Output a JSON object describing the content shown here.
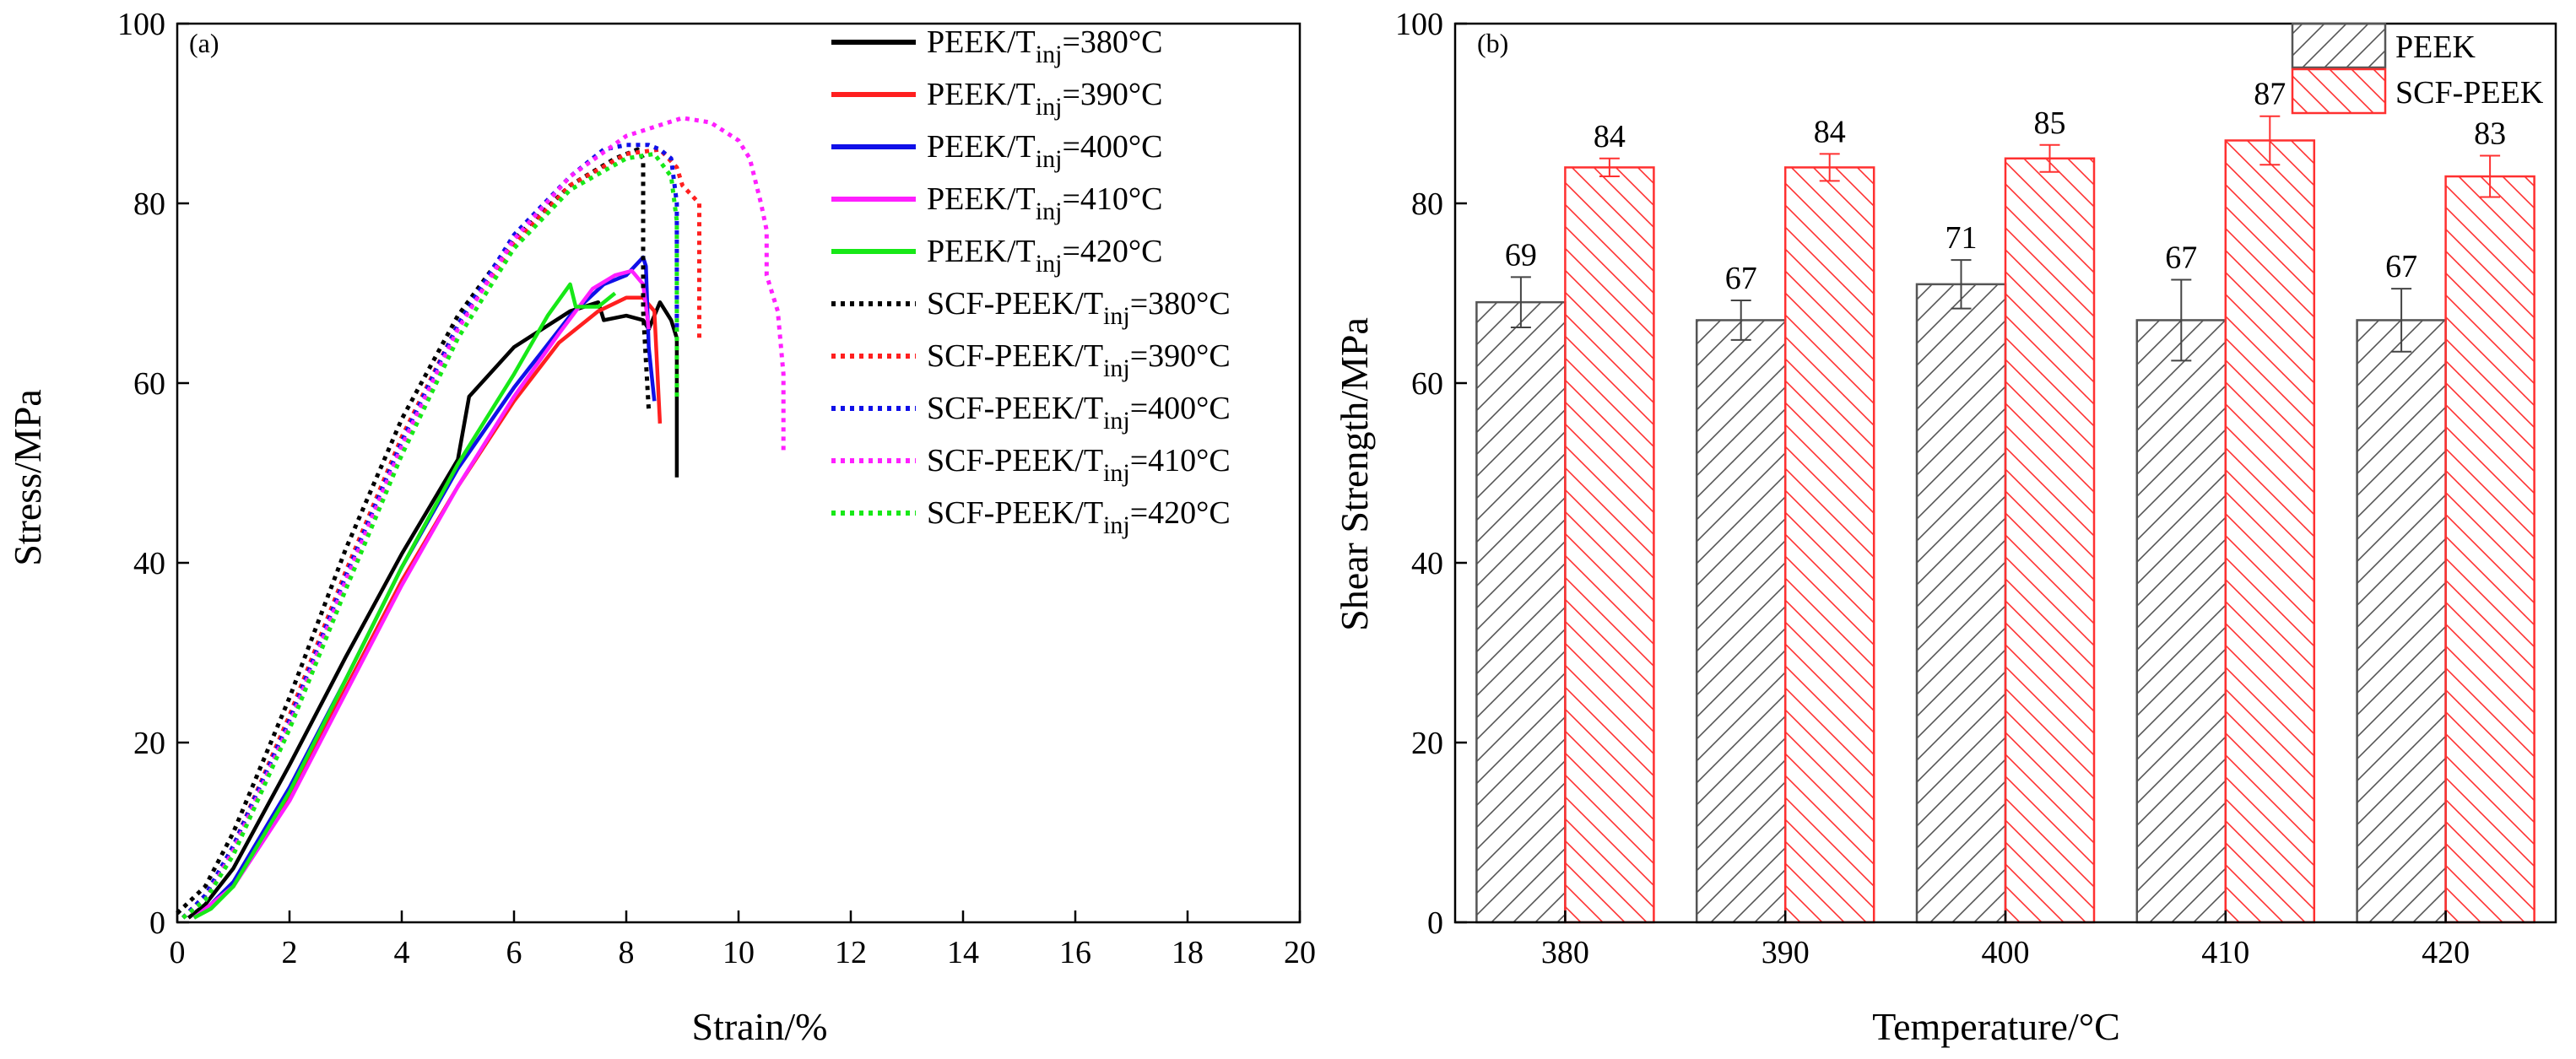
{
  "colors": {
    "black": "#000000",
    "red": "#ff1f1f",
    "blue": "#1010e8",
    "magenta": "#ff1fff",
    "green": "#17e817",
    "peek_hatch": "#555555",
    "scf_hatch": "#ff3030"
  },
  "chart_data": [
    {
      "type": "line",
      "panel_label": "(a)",
      "xlabel": "Strain/%",
      "ylabel": "Stress/MPa",
      "xlim": [
        0,
        20
      ],
      "ylim": [
        0,
        100
      ],
      "xticks": [
        0,
        2,
        4,
        6,
        8,
        10,
        12,
        14,
        16,
        18,
        20
      ],
      "yticks": [
        0,
        20,
        40,
        60,
        80,
        100
      ],
      "legend_position": "top-right",
      "series": [
        {
          "name": "PEEK/Tinj=380°C",
          "label_main": "PEEK/T",
          "label_sub": "inj",
          "label_tail": "=380°C",
          "color": "black",
          "dash": "solid",
          "points": [
            [
              0.2,
              0.5
            ],
            [
              0.5,
              2
            ],
            [
              1,
              6
            ],
            [
              2,
              17.5
            ],
            [
              3,
              29.5
            ],
            [
              4,
              41
            ],
            [
              5,
              51.5
            ],
            [
              5.2,
              58.5
            ],
            [
              6,
              64
            ],
            [
              7,
              68
            ],
            [
              7.5,
              69
            ],
            [
              7.6,
              67
            ],
            [
              8,
              67.5
            ],
            [
              8.3,
              67
            ],
            [
              8.4,
              66
            ],
            [
              8.6,
              69
            ],
            [
              8.8,
              67
            ],
            [
              8.9,
              65
            ],
            [
              8.9,
              49.5
            ]
          ]
        },
        {
          "name": "PEEK/Tinj=390°C",
          "label_main": "PEEK/T",
          "label_sub": "inj",
          "label_tail": "=390°C",
          "color": "red",
          "dash": "solid",
          "points": [
            [
              0.3,
              0.5
            ],
            [
              0.6,
              2
            ],
            [
              1,
              4
            ],
            [
              2,
              14
            ],
            [
              3,
              26
            ],
            [
              4,
              38
            ],
            [
              5,
              48.5
            ],
            [
              6,
              58
            ],
            [
              6.8,
              64.5
            ],
            [
              7.5,
              68
            ],
            [
              8,
              69.5
            ],
            [
              8.3,
              69.5
            ],
            [
              8.5,
              68
            ],
            [
              8.6,
              55.5
            ]
          ]
        },
        {
          "name": "PEEK/Tinj=400°C",
          "label_main": "PEEK/T",
          "label_sub": "inj",
          "label_tail": "=400°C",
          "color": "blue",
          "dash": "solid",
          "points": [
            [
              0.3,
              0.5
            ],
            [
              0.6,
              2
            ],
            [
              1,
              4.5
            ],
            [
              2,
              15
            ],
            [
              3,
              27
            ],
            [
              4,
              39.5
            ],
            [
              5,
              50.5
            ],
            [
              6,
              59.5
            ],
            [
              7,
              67.5
            ],
            [
              7.6,
              71
            ],
            [
              8,
              72
            ],
            [
              8.3,
              74
            ],
            [
              8.35,
              73
            ],
            [
              8.4,
              64
            ],
            [
              8.5,
              58
            ]
          ]
        },
        {
          "name": "PEEK/Tinj=410°C",
          "label_main": "PEEK/T",
          "label_sub": "inj",
          "label_tail": "=410°C",
          "color": "magenta",
          "dash": "solid",
          "points": [
            [
              0.3,
              0.5
            ],
            [
              0.6,
              2
            ],
            [
              1,
              4
            ],
            [
              2,
              13.5
            ],
            [
              3,
              25.5
            ],
            [
              4,
              37.5
            ],
            [
              5,
              48.5
            ],
            [
              6,
              58.5
            ],
            [
              6.8,
              65.5
            ],
            [
              7.4,
              70.5
            ],
            [
              7.8,
              72
            ],
            [
              8.1,
              72.5
            ],
            [
              8.3,
              71
            ],
            [
              8.4,
              66
            ]
          ]
        },
        {
          "name": "PEEK/Tinj=420°C",
          "label_main": "PEEK/T",
          "label_sub": "inj",
          "label_tail": "=420°C",
          "color": "green",
          "dash": "solid",
          "points": [
            [
              0.3,
              0.5
            ],
            [
              0.6,
              1.5
            ],
            [
              1,
              4
            ],
            [
              2,
              14.5
            ],
            [
              3,
              27
            ],
            [
              4,
              39.5
            ],
            [
              5,
              51
            ],
            [
              6,
              61
            ],
            [
              6.6,
              67.5
            ],
            [
              7,
              71
            ],
            [
              7.1,
              68.5
            ],
            [
              7.5,
              68.5
            ],
            [
              7.8,
              70
            ]
          ]
        },
        {
          "name": "SCF-PEEK/Tinj=380°C",
          "label_main": "SCF-PEEK/T",
          "label_sub": "inj",
          "label_tail": "=380°C",
          "color": "black",
          "dash": "dotted",
          "points": [
            [
              0,
              1
            ],
            [
              0.5,
              4
            ],
            [
              1,
              10
            ],
            [
              2,
              25
            ],
            [
              3,
              41.5
            ],
            [
              4,
              56
            ],
            [
              5,
              67.5
            ],
            [
              6,
              76
            ],
            [
              7,
              82
            ],
            [
              7.8,
              85
            ],
            [
              8.2,
              86
            ],
            [
              8.3,
              85
            ],
            [
              8.3,
              68
            ],
            [
              8.4,
              57
            ]
          ]
        },
        {
          "name": "SCF-PEEK/Tinj=390°C",
          "label_main": "SCF-PEEK/T",
          "label_sub": "inj",
          "label_tail": "=390°C",
          "color": "red",
          "dash": "dotted",
          "points": [
            [
              0.1,
              0.5
            ],
            [
              0.5,
              3
            ],
            [
              1,
              8.5
            ],
            [
              2,
              23
            ],
            [
              3,
              39
            ],
            [
              4,
              54
            ],
            [
              5,
              66.5
            ],
            [
              6,
              75.5
            ],
            [
              7,
              82
            ],
            [
              8,
              85.5
            ],
            [
              8.6,
              86
            ],
            [
              8.9,
              84
            ],
            [
              9,
              82
            ],
            [
              9.3,
              80
            ],
            [
              9.3,
              65
            ]
          ]
        },
        {
          "name": "SCF-PEEK/Tinj=400°C",
          "label_main": "SCF-PEEK/T",
          "label_sub": "inj",
          "label_tail": "=400°C",
          "color": "blue",
          "dash": "dotted",
          "points": [
            [
              0.1,
              0.5
            ],
            [
              0.5,
              3
            ],
            [
              1,
              8.5
            ],
            [
              2,
              22.5
            ],
            [
              3,
              38.5
            ],
            [
              4,
              53.5
            ],
            [
              5,
              66.5
            ],
            [
              6,
              76.5
            ],
            [
              7,
              83
            ],
            [
              7.6,
              86
            ],
            [
              8,
              86.5
            ],
            [
              8.4,
              86.5
            ],
            [
              8.6,
              86
            ],
            [
              8.8,
              85
            ],
            [
              8.9,
              80
            ],
            [
              8.9,
              66
            ]
          ]
        },
        {
          "name": "SCF-PEEK/Tinj=410°C",
          "label_main": "SCF-PEEK/T",
          "label_sub": "inj",
          "label_tail": "=410°C",
          "color": "magenta",
          "dash": "dotted",
          "points": [
            [
              0.1,
              0.5
            ],
            [
              0.5,
              2.5
            ],
            [
              1,
              8
            ],
            [
              2,
              22
            ],
            [
              3,
              38
            ],
            [
              4,
              53
            ],
            [
              5,
              66
            ],
            [
              6,
              76
            ],
            [
              7,
              83
            ],
            [
              8,
              87.5
            ],
            [
              9,
              89.5
            ],
            [
              9.5,
              89
            ],
            [
              10,
              87
            ],
            [
              10.2,
              85
            ],
            [
              10.4,
              80
            ],
            [
              10.5,
              77
            ],
            [
              10.5,
              72
            ],
            [
              10.7,
              68
            ],
            [
              10.8,
              61
            ],
            [
              10.8,
              52.5
            ]
          ]
        },
        {
          "name": "SCF-PEEK/Tinj=420°C",
          "label_main": "SCF-PEEK/T",
          "label_sub": "inj",
          "label_tail": "=420°C",
          "color": "green",
          "dash": "dotted",
          "points": [
            [
              0.1,
              0.5
            ],
            [
              0.5,
              2.5
            ],
            [
              1,
              7.5
            ],
            [
              2,
              21.5
            ],
            [
              3,
              37
            ],
            [
              4,
              52
            ],
            [
              5,
              65
            ],
            [
              6,
              75
            ],
            [
              7,
              81.5
            ],
            [
              8,
              85
            ],
            [
              8.5,
              85.5
            ],
            [
              8.8,
              83
            ],
            [
              8.9,
              78
            ],
            [
              8.9,
              58
            ]
          ]
        }
      ]
    },
    {
      "type": "bar",
      "panel_label": "(b)",
      "xlabel": "Temperature/°C",
      "ylabel": "Shear Strength/MPa",
      "ylim": [
        0,
        100
      ],
      "yticks": [
        0,
        20,
        40,
        60,
        80,
        100
      ],
      "categories": [
        "380",
        "390",
        "400",
        "410",
        "420"
      ],
      "legend_position": "top-right",
      "series": [
        {
          "name": "PEEK",
          "values": [
            69,
            67,
            71,
            67,
            67
          ],
          "errors": [
            2.8,
            2.2,
            2.7,
            4.5,
            3.5
          ],
          "labels": [
            "69",
            "67",
            "71",
            "67",
            "67"
          ],
          "color": "peek_hatch",
          "hatch": "forward"
        },
        {
          "name": "SCF-PEEK",
          "values": [
            84,
            84,
            85,
            87,
            83
          ],
          "errors": [
            1.0,
            1.5,
            1.5,
            2.7,
            2.3
          ],
          "labels": [
            "84",
            "84",
            "85",
            "87",
            "83"
          ],
          "color": "scf_hatch",
          "hatch": "backward"
        }
      ]
    }
  ]
}
